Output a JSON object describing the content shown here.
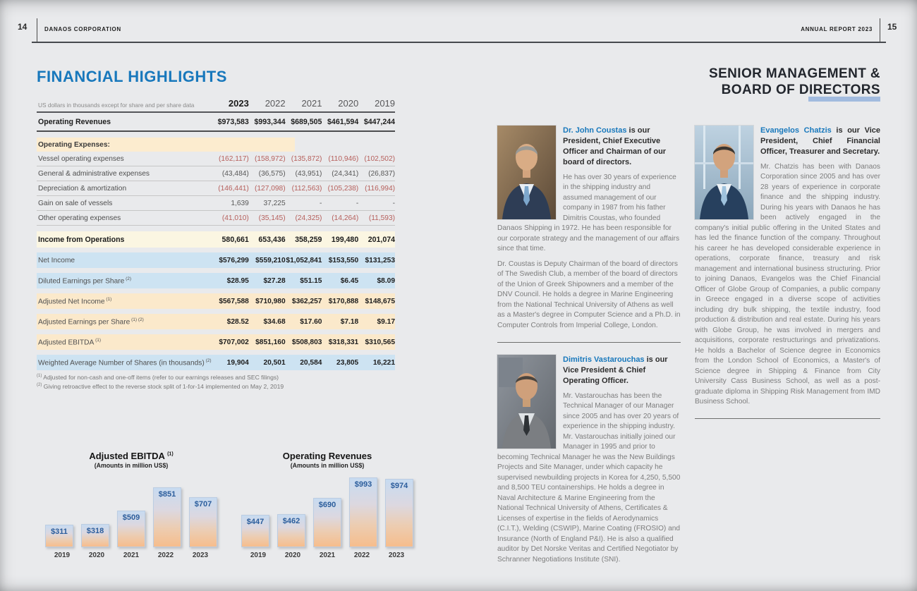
{
  "header": {
    "left_page_number": "14",
    "brand": "DANAOS CORPORATION",
    "report_label": "ANNUAL REPORT 2023",
    "right_page_number": "15"
  },
  "page_left": {
    "title": "FINANCIAL HIGHLIGHTS",
    "table": {
      "note": "US dollars in thousands except for share and per share data",
      "years": [
        "2023",
        "2022",
        "2021",
        "2020",
        "2019"
      ],
      "rows": [
        {
          "label": "Operating Revenues",
          "style": "revenues",
          "values": [
            "$973,583",
            "$993,344",
            "$689,505",
            "$461,594",
            "$447,244"
          ]
        },
        {
          "label": "Operating Expenses:",
          "style": "section-peach",
          "values": [
            "",
            "",
            "",
            "",
            ""
          ]
        },
        {
          "label": "Vessel operating expenses",
          "style": "expense neg-red",
          "values": [
            "(162,117)",
            "(158,972)",
            "(135,872)",
            "(110,946)",
            "(102,502)"
          ]
        },
        {
          "label": "General & administrative expenses",
          "style": "expense neg-gray",
          "values": [
            "(43,484)",
            "(36,575)",
            "(43,951)",
            "(24,341)",
            "(26,837)"
          ]
        },
        {
          "label": "Depreciation & amortization",
          "style": "expense neg-red",
          "values": [
            "(146,441)",
            "(127,098)",
            "(112,563)",
            "(105,238)",
            "(116,994)"
          ]
        },
        {
          "label": "Gain on sale of vessels",
          "style": "expense neg-gray",
          "values": [
            "1,639",
            "37,225",
            "-",
            "-",
            "-"
          ]
        },
        {
          "label": "Other operating expenses",
          "style": "expense neg-red",
          "values": [
            "(41,010)",
            "(35,145)",
            "(24,325)",
            "(14,264)",
            "(11,593)"
          ]
        },
        {
          "label": "Income from Operations",
          "style": "total-cream",
          "values": [
            "580,661",
            "653,436",
            "358,259",
            "199,480",
            "201,074"
          ]
        },
        {
          "label": "Net Income",
          "style": "band-blue",
          "values": [
            "$576,299",
            "$559,210",
            "$1,052,841",
            "$153,550",
            "$131,253"
          ]
        },
        {
          "label": "Diluted Earnings per Share",
          "sup": "(2)",
          "style": "band-blue",
          "values": [
            "$28.95",
            "$27.28",
            "$51.15",
            "$6.45",
            "$8.09"
          ]
        },
        {
          "label": "Adjusted Net Income",
          "sup": "(1)",
          "style": "band-peach",
          "values": [
            "$567,588",
            "$710,980",
            "$362,257",
            "$170,888",
            "$148,675"
          ]
        },
        {
          "label": "Adjusted Earnings per Share",
          "sup": "(1) (2)",
          "style": "band-peach",
          "values": [
            "$28.52",
            "$34.68",
            "$17.60",
            "$7.18",
            "$9.17"
          ]
        },
        {
          "label": "Adjusted EBITDA",
          "sup": "(1)",
          "style": "band-peach",
          "values": [
            "$707,002",
            "$851,160",
            "$508,803",
            "$318,331",
            "$310,565"
          ]
        },
        {
          "label": "Weighted Average Number of Shares (in thousands)",
          "sup": "(2)",
          "style": "band-blue",
          "values": [
            "19,904",
            "20,501",
            "20,584",
            "23,805",
            "16,221"
          ]
        }
      ]
    },
    "footnotes": [
      {
        "sup": "(1)",
        "text": "Adjusted for non-cash and one-off items (refer to our earnings releases and SEC filings)"
      },
      {
        "sup": "(2)",
        "text": "Giving retroactive effect to the reverse stock split of 1-for-14 implemented on May 2, 2019"
      }
    ]
  },
  "chart_data": [
    {
      "type": "bar",
      "title": "Adjusted EBITDA",
      "title_sup": "(1)",
      "subtitle": "(Amounts in million US$)",
      "categories": [
        "2019",
        "2020",
        "2021",
        "2022",
        "2023"
      ],
      "values": [
        311,
        318,
        509,
        851,
        707
      ],
      "labels": [
        "$311",
        "$318",
        "$509",
        "$851",
        "$707"
      ],
      "xlabel": "",
      "ylabel": "",
      "ylim": [
        0,
        900
      ],
      "grid": false,
      "legend": "none",
      "value_labels_position": "inside-top"
    },
    {
      "type": "bar",
      "title": "Operating Revenues",
      "subtitle": "(Amounts in million US$)",
      "categories": [
        "2019",
        "2020",
        "2021",
        "2022",
        "2023"
      ],
      "values": [
        447,
        462,
        690,
        993,
        974
      ],
      "labels": [
        "$447",
        "$462",
        "$690",
        "$993",
        "$974"
      ],
      "xlabel": "",
      "ylabel": "",
      "ylim": [
        0,
        1000
      ],
      "grid": false,
      "legend": "none",
      "value_labels_position": "inside-top"
    }
  ],
  "page_right": {
    "title_line1": "SENIOR MANAGEMENT &",
    "title_line2": "BOARD OF DIRECTORS",
    "bios": [
      {
        "name": "Dr. John Coustas",
        "heading_rest": " is our President, Chief Executive Officer and Chairman of our board of directors.",
        "body": [
          "He has over 30 years of experience in the shipping industry and assumed management of our company in 1987 from his father Dimitris Coustas, who founded Danaos Shipping in 1972. He has been responsible for our corporate strategy and the management of our affairs since that time.",
          "Dr. Coustas is Deputy Chairman of the board of directors of The Swedish Club, a member of the board of directors of the Union of Greek Shipowners and a member of the DNV Council. He holds a degree in Marine Engineering from the National Technical University of Athens as well as a Master's degree in Computer Science and a Ph.D. in Computer Controls from Imperial College, London."
        ]
      },
      {
        "name": "Dimitris Vastarouchas",
        "heading_rest": " is our Vice President & Chief Operating Officer.",
        "body": [
          "Mr. Vastarouchas has been the Technical Manager of our Manager since 2005 and has over 20 years of experience in the shipping industry. Mr. Vastarouchas initially joined our Manager in 1995 and prior to becoming Technical Manager he was the New Buildings Projects and Site Manager, under which capacity he supervised newbuilding projects in Korea for 4,250, 5,500 and 8,500 TEU containerships. He holds a degree in Naval Architecture & Marine Engineering from the National Technical University of Athens, Certificates & Licenses of expertise in the fields of Aerodynamics (C.I.T.), Welding (CSWIP), Marine Coating (FROSIO) and Insurance (North of England P&I). He is also a qualified auditor by Det Norske Veritas and Certified Negotiator by Schranner Negotiations Institute (SNI)."
        ]
      },
      {
        "name": "Evangelos Chatzis",
        "heading_rest": " is our Vice President, Chief Financial Officer, Treasurer and Secretary.",
        "body": [
          "Mr. Chatzis has been with Danaos Corporation since 2005 and has over 28 years of experience in corporate finance and the shipping industry. During his years with Danaos he has been actively engaged in the company's initial public offering in the United States and has led the finance function of the company. Throughout his career he has developed considerable experience in operations, corporate finance, treasury and risk management and international business structuring. Prior to joining Danaos, Evangelos was the Chief Financial Officer of Globe Group of Companies, a public company in Greece engaged in a diverse scope of activities including dry bulk shipping, the textile industry, food production & distribution and real estate. During his years with Globe Group, he was involved in mergers and acquisitions, corporate restructurings and privatizations. He holds a Bachelor of Science degree in Economics from the London School of Economics, a Master's of Science degree in Shipping & Finance from City University Cass Business School, as well as a post-graduate diploma in Shipping Risk Management from IMD Business School."
        ]
      }
    ]
  },
  "colors": {
    "accent_blue": "#1878bc",
    "negative_red": "#b65f5b",
    "band_blue": "#cde3f2",
    "band_peach": "#fbe9cb",
    "band_cream": "#fbf6e2",
    "section_peach": "#fceccf",
    "bar_label_blue": "#2b5d9c",
    "title_underline": "#a2bbdf",
    "page_background": "#e9eaec"
  }
}
